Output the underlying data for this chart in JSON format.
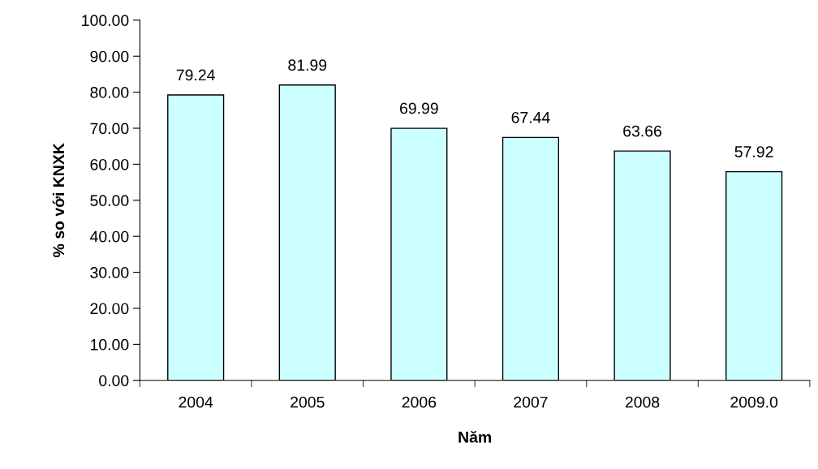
{
  "chart_data": {
    "type": "bar",
    "xlabel": "Năm",
    "ylabel": "% so với KNXK",
    "categories": [
      "2004",
      "2005",
      "2006",
      "2007",
      "2008",
      "2009.0"
    ],
    "values": [
      79.24,
      81.99,
      69.99,
      67.44,
      63.66,
      57.92
    ],
    "color": "#ccffff",
    "ylim": [
      0,
      100
    ],
    "yticks": [
      {
        "value": 0,
        "label": "0.00"
      },
      {
        "value": 10,
        "label": "10.00"
      },
      {
        "value": 20,
        "label": "20.00"
      },
      {
        "value": 30,
        "label": "30.00"
      },
      {
        "value": 40,
        "label": "40.00"
      },
      {
        "value": 50,
        "label": "50.00"
      },
      {
        "value": 60,
        "label": "60.00"
      },
      {
        "value": 70,
        "label": "70.00"
      },
      {
        "value": 80,
        "label": "80.00"
      },
      {
        "value": 90,
        "label": "90.00"
      },
      {
        "value": 100,
        "label": "100.00"
      }
    ],
    "data_labels": true,
    "grid": false,
    "legend": false
  }
}
